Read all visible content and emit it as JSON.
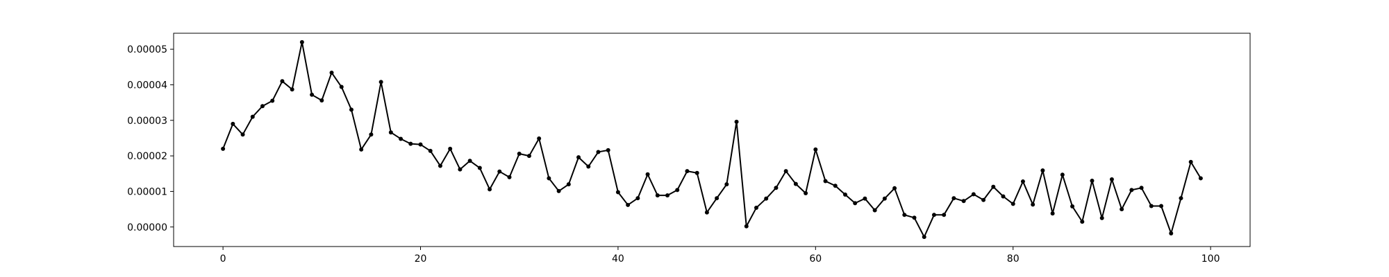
{
  "chart_data": {
    "type": "line",
    "title": "",
    "xlabel": "",
    "ylabel": "",
    "xlim": [
      -5,
      104
    ],
    "ylim": [
      -5.5e-06,
      5.45e-05
    ],
    "x_ticks": [
      0,
      20,
      40,
      60,
      80,
      100
    ],
    "x_tick_labels": [
      "0",
      "20",
      "40",
      "60",
      "80",
      "100"
    ],
    "y_ticks": [
      0,
      1e-05,
      2e-05,
      3e-05,
      4e-05,
      5e-05
    ],
    "y_tick_labels": [
      "0.00000",
      "0.00001",
      "0.00002",
      "0.00003",
      "0.00004",
      "0.00005"
    ],
    "grid": false,
    "series": [
      {
        "color": "#000000",
        "marker": "dot",
        "x": [
          0,
          1,
          2,
          3,
          4,
          5,
          6,
          7,
          8,
          9,
          10,
          11,
          12,
          13,
          14,
          15,
          16,
          17,
          18,
          19,
          20,
          21,
          22,
          23,
          24,
          25,
          26,
          27,
          28,
          29,
          30,
          31,
          32,
          33,
          34,
          35,
          36,
          37,
          38,
          39,
          40,
          41,
          42,
          43,
          44,
          45,
          46,
          47,
          48,
          49,
          50,
          51,
          52,
          53,
          54,
          55,
          56,
          57,
          58,
          59,
          60,
          61,
          62,
          63,
          64,
          65,
          66,
          67,
          68,
          69,
          70,
          71,
          72,
          73,
          74,
          75,
          76,
          77,
          78,
          79,
          80,
          81,
          82,
          83,
          84,
          85,
          86,
          87,
          88,
          89,
          90,
          91,
          92,
          93,
          94,
          95,
          96,
          97,
          98,
          99
        ],
        "y": [
          2.2e-05,
          2.9e-05,
          2.6e-05,
          3.1e-05,
          3.4e-05,
          3.55e-05,
          4.1e-05,
          3.87e-05,
          5.2e-05,
          3.72e-05,
          3.56e-05,
          4.34e-05,
          3.94e-05,
          3.3e-05,
          2.18e-05,
          2.6e-05,
          4.08e-05,
          2.66e-05,
          2.48e-05,
          2.34e-05,
          2.32e-05,
          2.14e-05,
          1.72e-05,
          2.2e-05,
          1.62e-05,
          1.86e-05,
          1.66e-05,
          1.06e-05,
          1.56e-05,
          1.4e-05,
          2.06e-05,
          2e-05,
          2.49e-05,
          1.37e-05,
          1.01e-05,
          1.2e-05,
          1.96e-05,
          1.7e-05,
          2.11e-05,
          2.16e-05,
          9.8e-06,
          6.2e-06,
          8.1e-06,
          1.48e-05,
          8.9e-06,
          8.9e-06,
          1.04e-05,
          1.57e-05,
          1.52e-05,
          4.1e-06,
          8.1e-06,
          1.2e-05,
          2.96e-05,
          2e-07,
          5.4e-06,
          8e-06,
          1.1e-05,
          1.57e-05,
          1.21e-05,
          9.5e-06,
          2.18e-05,
          1.29e-05,
          1.16e-05,
          9.1e-06,
          6.7e-06,
          8e-06,
          4.7e-06,
          8e-06,
          1.09e-05,
          3.4e-06,
          2.6e-06,
          -2.8e-06,
          3.4e-06,
          3.4e-06,
          8.1e-06,
          7.3e-06,
          9.2e-06,
          7.6e-06,
          1.13e-05,
          8.6e-06,
          6.5e-06,
          1.28e-05,
          6.3e-06,
          1.59e-05,
          3.8e-06,
          1.47e-05,
          5.8e-06,
          1.5e-06,
          1.3e-05,
          2.5e-06,
          1.34e-05,
          5e-06,
          1.04e-05,
          1.1e-05,
          5.9e-06,
          5.9e-06,
          -1.8e-06,
          8.1e-06,
          1.83e-05,
          1.37e-05
        ]
      }
    ]
  }
}
